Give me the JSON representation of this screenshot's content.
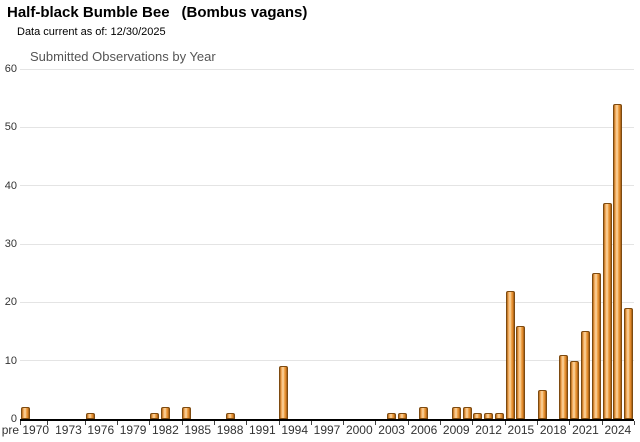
{
  "header": {
    "title_common": "Half-black Bumble Bee",
    "title_scientific": "(Bombus vagans)",
    "data_current": "Data current as of: 12/30/2025"
  },
  "chart_data": {
    "type": "bar",
    "title": "Submitted Observations by Year",
    "xlabel": "",
    "ylabel": "",
    "ylim": [
      0,
      60
    ],
    "yticks": [
      0,
      10,
      20,
      30,
      40,
      50,
      60
    ],
    "grid": "horizontal",
    "legend": "none",
    "categories": [
      "pre 1970",
      "1970",
      "1971",
      "1972",
      "1973",
      "1974",
      "1975",
      "1976",
      "1977",
      "1978",
      "1979",
      "1980",
      "1981",
      "1982",
      "1983",
      "1984",
      "1985",
      "1986",
      "1987",
      "1988",
      "1989",
      "1990",
      "1991",
      "1992",
      "1993",
      "1994",
      "1995",
      "1996",
      "1997",
      "1998",
      "1999",
      "2000",
      "2001",
      "2002",
      "2003",
      "2004",
      "2005",
      "2006",
      "2007",
      "2008",
      "2009",
      "2010",
      "2011",
      "2012",
      "2013",
      "2014",
      "2015",
      "2016",
      "2017",
      "2018",
      "2019",
      "2020",
      "2021",
      "2022",
      "2023",
      "2024",
      "2025"
    ],
    "values": [
      2,
      0,
      0,
      0,
      0,
      0,
      1,
      0,
      0,
      0,
      0,
      0,
      1,
      2,
      0,
      2,
      0,
      0,
      0,
      1,
      0,
      0,
      0,
      0,
      9,
      0,
      0,
      0,
      0,
      0,
      0,
      0,
      0,
      0,
      1,
      1,
      0,
      2,
      0,
      0,
      2,
      2,
      1,
      1,
      1,
      22,
      16,
      0,
      5,
      0,
      11,
      10,
      15,
      25,
      37,
      54,
      19
    ],
    "xtick_labels": [
      "pre 1970",
      "1973",
      "1976",
      "1979",
      "1982",
      "1985",
      "1988",
      "1991",
      "1994",
      "1997",
      "2000",
      "2003",
      "2006",
      "2009",
      "2012",
      "2015",
      "2018",
      "2021",
      "2024"
    ],
    "colors": {
      "bar_fill_mid": "#ef9a3f",
      "bar_fill_light": "#fbd9a4",
      "bar_fill_dark": "#a3631a",
      "bar_border": "#7d4a10",
      "gridline": "#e4e4e4",
      "axis": "#000000",
      "label": "#333333",
      "subtitle": "#555555"
    }
  }
}
